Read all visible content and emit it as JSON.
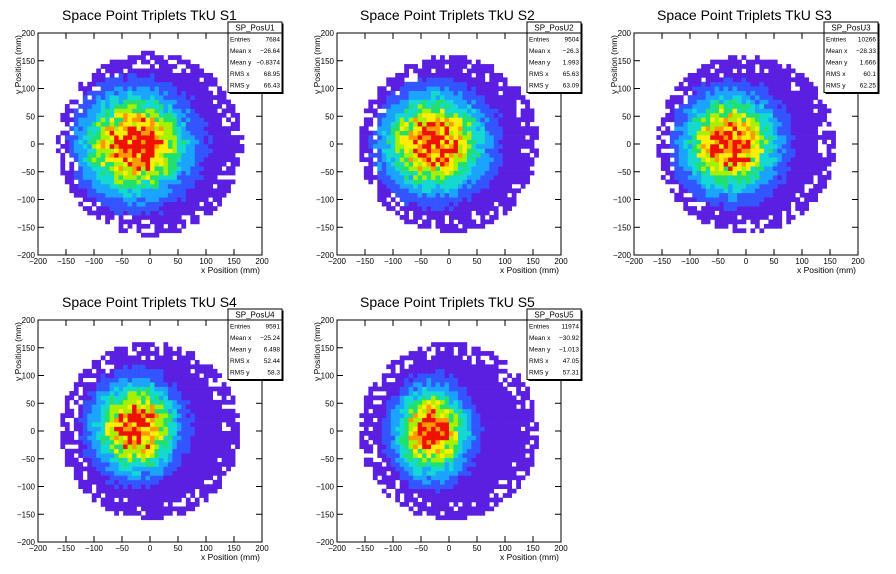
{
  "chart_data": [
    {
      "type": "heatmap",
      "title": "Space Point Triplets TkU S1",
      "xlabel": "x Position (mm)",
      "ylabel": "y Position (mm)",
      "xlim": [
        -200,
        200
      ],
      "ylim": [
        -200,
        200
      ],
      "xticks": [
        "−200",
        "−150",
        "−100",
        "−50",
        "0",
        "50",
        "100",
        "150",
        "200"
      ],
      "yticks": [
        "−200",
        "−150",
        "−100",
        "−50",
        "0",
        "50",
        "100",
        "150",
        "200"
      ],
      "stats": {
        "name": "SP_PosU1",
        "rows": [
          {
            "label": "Entries",
            "value": "7684"
          },
          {
            "label": "Mean x",
            "value": "−26.64"
          },
          {
            "label": "Mean y",
            "value": "−0.8374"
          },
          {
            "label": "RMS x",
            "value": "68.95"
          },
          {
            "label": "RMS y",
            "value": "66.43"
          }
        ]
      },
      "distribution": {
        "mean_x": -26.64,
        "mean_y": -0.8374,
        "rms_x": 68.95,
        "rms_y": 66.43,
        "radius": 165
      }
    },
    {
      "type": "heatmap",
      "title": "Space Point Triplets TkU S2",
      "xlabel": "x Position (mm)",
      "ylabel": "y Position (mm)",
      "xlim": [
        -200,
        200
      ],
      "ylim": [
        -200,
        200
      ],
      "xticks": [
        "−200",
        "−150",
        "−100",
        "−50",
        "0",
        "50",
        "100",
        "150",
        "200"
      ],
      "yticks": [
        "−200",
        "−150",
        "−100",
        "−50",
        "0",
        "50",
        "100",
        "150",
        "200"
      ],
      "stats": {
        "name": "SP_PosU2",
        "rows": [
          {
            "label": "Entries",
            "value": "9504"
          },
          {
            "label": "Mean x",
            "value": "−26.3"
          },
          {
            "label": "Mean y",
            "value": "1.993"
          },
          {
            "label": "RMS x",
            "value": "65.63"
          },
          {
            "label": "RMS y",
            "value": "63.09"
          }
        ]
      },
      "distribution": {
        "mean_x": -26.3,
        "mean_y": 1.993,
        "rms_x": 65.63,
        "rms_y": 63.09,
        "radius": 160
      }
    },
    {
      "type": "heatmap",
      "title": "Space Point Triplets TkU S3",
      "xlabel": "x Position (mm)",
      "ylabel": "y Position (mm)",
      "xlim": [
        -200,
        200
      ],
      "ylim": [
        -200,
        200
      ],
      "xticks": [
        "−200",
        "−150",
        "−100",
        "−50",
        "0",
        "50",
        "100",
        "150",
        "200"
      ],
      "yticks": [
        "−200",
        "−150",
        "−100",
        "−50",
        "0",
        "50",
        "100",
        "150",
        "200"
      ],
      "stats": {
        "name": "SP_PosU3",
        "rows": [
          {
            "label": "Entries",
            "value": "10266"
          },
          {
            "label": "Mean x",
            "value": "−28.33"
          },
          {
            "label": "Mean y",
            "value": "1.666"
          },
          {
            "label": "RMS x",
            "value": "60.1"
          },
          {
            "label": "RMS y",
            "value": "62.25"
          }
        ]
      },
      "distribution": {
        "mean_x": -28.33,
        "mean_y": 1.666,
        "rms_x": 60.1,
        "rms_y": 62.25,
        "radius": 160
      }
    },
    {
      "type": "heatmap",
      "title": "Space Point Triplets TkU S4",
      "xlabel": "x Position (mm)",
      "ylabel": "y Position (mm)",
      "xlim": [
        -200,
        200
      ],
      "ylim": [
        -200,
        200
      ],
      "xticks": [
        "−200",
        "−150",
        "−100",
        "−50",
        "0",
        "50",
        "100",
        "150",
        "200"
      ],
      "yticks": [
        "−200",
        "−150",
        "−100",
        "−50",
        "0",
        "50",
        "100",
        "150",
        "200"
      ],
      "stats": {
        "name": "SP_PosU4",
        "rows": [
          {
            "label": "Entries",
            "value": "9591"
          },
          {
            "label": "Mean x",
            "value": "−25.24"
          },
          {
            "label": "Mean y",
            "value": "6.498"
          },
          {
            "label": "RMS x",
            "value": "52.44"
          },
          {
            "label": "RMS y",
            "value": "58.3"
          }
        ]
      },
      "distribution": {
        "mean_x": -25.24,
        "mean_y": 6.498,
        "rms_x": 52.44,
        "rms_y": 58.3,
        "radius": 160
      }
    },
    {
      "type": "heatmap",
      "title": "Space Point Triplets TkU S5",
      "xlabel": "x Position (mm)",
      "ylabel": "y Position (mm)",
      "xlim": [
        -200,
        200
      ],
      "ylim": [
        -200,
        200
      ],
      "xticks": [
        "−200",
        "−150",
        "−100",
        "−50",
        "0",
        "50",
        "100",
        "150",
        "200"
      ],
      "yticks": [
        "−200",
        "−150",
        "−100",
        "−50",
        "0",
        "50",
        "100",
        "150",
        "200"
      ],
      "stats": {
        "name": "SP_PosU5",
        "rows": [
          {
            "label": "Entries",
            "value": "11974"
          },
          {
            "label": "Mean x",
            "value": "−30.92"
          },
          {
            "label": "Mean y",
            "value": "−1.013"
          },
          {
            "label": "RMS x",
            "value": "47.05"
          },
          {
            "label": "RMS y",
            "value": "57.31"
          }
        ]
      },
      "distribution": {
        "mean_x": -30.92,
        "mean_y": -1.013,
        "rms_x": 47.05,
        "rms_y": 57.31,
        "radius": 160
      }
    }
  ],
  "colors": {
    "palette": [
      "#5a1fe0",
      "#3355ff",
      "#1aa3ff",
      "#14d9d0",
      "#22e070",
      "#a8f000",
      "#ffee00",
      "#ff9900",
      "#ee1100"
    ],
    "axis": "#000000",
    "frame": "#000000"
  }
}
